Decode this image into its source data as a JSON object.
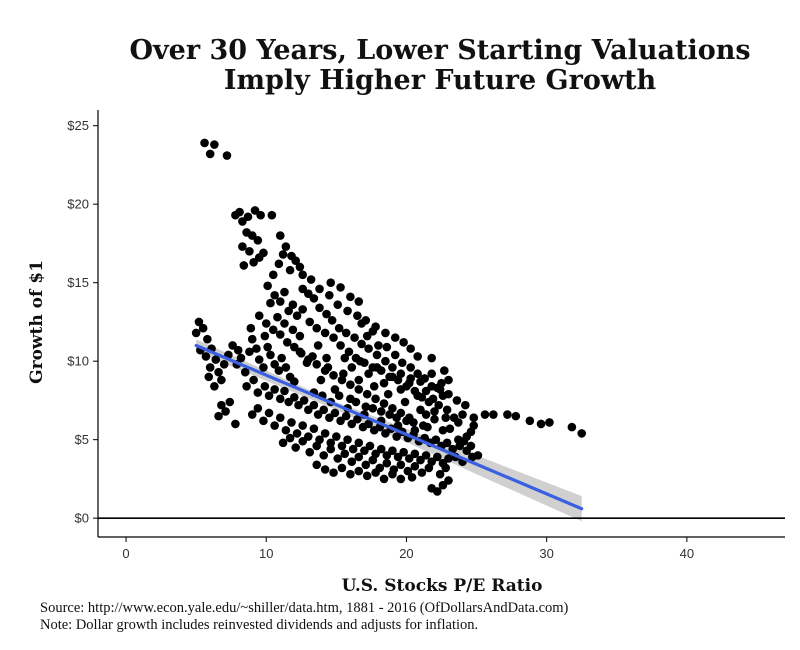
{
  "title_lines": [
    "Over 30 Years, Lower Starting Valuations",
    "Imply Higher Future Growth"
  ],
  "source_lines": [
    "Source:  http://www.econ.yale.edu/~shiller/data.htm, 1881 - 2016 (OfDollarsAndData.com)",
    "Note:  Dollar growth includes reinvested dividends and adjusts for inflation."
  ],
  "chart_data": {
    "type": "scatter",
    "title": "Over 30 Years, Lower Starting Valuations Imply Higher Future Growth",
    "xlabel": "U.S. Stocks P/E Ratio",
    "ylabel": "Growth of $1",
    "xlim": [
      -2,
      47
    ],
    "ylim": [
      -1.2,
      26
    ],
    "x_ticks": [
      0,
      10,
      20,
      30,
      40
    ],
    "x_tick_labels": [
      "0",
      "10",
      "20",
      "30",
      "40"
    ],
    "y_ticks": [
      0,
      5,
      10,
      15,
      20,
      25
    ],
    "y_tick_labels": [
      "$0",
      "$5",
      "$10",
      "$15",
      "$20",
      "$25"
    ],
    "grid": false,
    "point_color": "#000000",
    "fit_color": "#3a5fe0",
    "band_color": "#c8c8c8",
    "fit": {
      "x1": 5,
      "y1": 11.0,
      "x2": 32.5,
      "y2": 0.6
    },
    "band": [
      {
        "x": 5,
        "lo": 10.6,
        "hi": 11.4
      },
      {
        "x": 15,
        "lo": 6.9,
        "hi": 7.4
      },
      {
        "x": 25,
        "lo": 2.8,
        "hi": 4.0
      },
      {
        "x": 32.5,
        "lo": -0.2,
        "hi": 1.4
      }
    ],
    "points": [
      [
        5.6,
        23.9
      ],
      [
        6.0,
        23.2
      ],
      [
        6.3,
        23.8
      ],
      [
        7.2,
        23.1
      ],
      [
        7.8,
        19.3
      ],
      [
        8.1,
        19.5
      ],
      [
        8.3,
        18.9
      ],
      [
        8.7,
        19.2
      ],
      [
        9.2,
        19.6
      ],
      [
        9.6,
        19.3
      ],
      [
        10.4,
        19.3
      ],
      [
        8.3,
        17.3
      ],
      [
        8.6,
        18.2
      ],
      [
        9.0,
        18.0
      ],
      [
        8.8,
        17.0
      ],
      [
        9.4,
        17.7
      ],
      [
        9.8,
        16.9
      ],
      [
        8.4,
        16.1
      ],
      [
        9.1,
        16.3
      ],
      [
        9.5,
        16.6
      ],
      [
        11.0,
        18.0
      ],
      [
        11.4,
        17.3
      ],
      [
        11.8,
        16.7
      ],
      [
        12.1,
        16.4
      ],
      [
        12.4,
        16.0
      ],
      [
        12.6,
        15.5
      ],
      [
        11.2,
        16.8
      ],
      [
        11.7,
        15.8
      ],
      [
        12.6,
        14.6
      ],
      [
        13.0,
        14.3
      ],
      [
        13.4,
        14.0
      ],
      [
        13.8,
        13.4
      ],
      [
        14.3,
        13.0
      ],
      [
        14.7,
        12.6
      ],
      [
        15.2,
        12.1
      ],
      [
        15.7,
        11.8
      ],
      [
        16.3,
        11.5
      ],
      [
        16.8,
        11.1
      ],
      [
        17.3,
        10.8
      ],
      [
        17.9,
        10.4
      ],
      [
        18.5,
        10.0
      ],
      [
        19.0,
        9.6
      ],
      [
        19.6,
        9.2
      ],
      [
        20.3,
        8.9
      ],
      [
        21.0,
        8.7
      ],
      [
        21.8,
        8.4
      ],
      [
        22.4,
        8.2
      ],
      [
        23.0,
        7.9
      ],
      [
        23.6,
        7.5
      ],
      [
        24.2,
        7.2
      ],
      [
        13.2,
        15.2
      ],
      [
        13.8,
        14.6
      ],
      [
        14.5,
        14.2
      ],
      [
        15.1,
        13.6
      ],
      [
        15.8,
        13.2
      ],
      [
        16.5,
        12.9
      ],
      [
        17.1,
        12.6
      ],
      [
        17.8,
        12.2
      ],
      [
        18.5,
        11.8
      ],
      [
        19.2,
        11.5
      ],
      [
        19.8,
        11.2
      ],
      [
        20.3,
        10.8
      ],
      [
        20.8,
        10.3
      ],
      [
        10.3,
        13.7
      ],
      [
        10.6,
        14.2
      ],
      [
        11.0,
        13.8
      ],
      [
        11.3,
        14.4
      ],
      [
        11.6,
        13.2
      ],
      [
        11.9,
        13.6
      ],
      [
        12.2,
        12.9
      ],
      [
        12.6,
        13.3
      ],
      [
        13.1,
        12.5
      ],
      [
        13.6,
        12.1
      ],
      [
        14.2,
        11.8
      ],
      [
        14.8,
        11.5
      ],
      [
        15.3,
        11.0
      ],
      [
        15.9,
        10.6
      ],
      [
        16.4,
        10.2
      ],
      [
        17.0,
        9.9
      ],
      [
        17.6,
        9.6
      ],
      [
        18.2,
        9.4
      ],
      [
        18.8,
        9.0
      ],
      [
        19.4,
        8.8
      ],
      [
        20.0,
        8.4
      ],
      [
        20.6,
        8.1
      ],
      [
        21.1,
        7.7
      ],
      [
        21.6,
        7.4
      ],
      [
        10.0,
        12.4
      ],
      [
        10.5,
        12.0
      ],
      [
        11.0,
        11.7
      ],
      [
        11.5,
        11.2
      ],
      [
        12.0,
        10.9
      ],
      [
        12.5,
        10.5
      ],
      [
        13.0,
        10.1
      ],
      [
        13.6,
        9.8
      ],
      [
        14.2,
        9.4
      ],
      [
        14.8,
        9.1
      ],
      [
        15.4,
        8.8
      ],
      [
        16.0,
        8.5
      ],
      [
        16.6,
        8.2
      ],
      [
        17.2,
        7.9
      ],
      [
        17.8,
        7.6
      ],
      [
        18.4,
        7.3
      ],
      [
        19.0,
        7.0
      ],
      [
        19.6,
        6.7
      ],
      [
        20.2,
        6.4
      ],
      [
        16.8,
        12.4
      ],
      [
        17.2,
        11.6
      ],
      [
        17.6,
        11.9
      ],
      [
        18.0,
        11.0
      ],
      [
        18.6,
        10.9
      ],
      [
        19.2,
        10.4
      ],
      [
        19.7,
        9.9
      ],
      [
        20.3,
        9.6
      ],
      [
        20.8,
        9.2
      ],
      [
        21.3,
        8.9
      ],
      [
        21.8,
        9.2
      ],
      [
        22.2,
        8.3
      ],
      [
        22.6,
        7.8
      ],
      [
        22.9,
        6.9
      ],
      [
        21.4,
        6.6
      ],
      [
        22.0,
        6.3
      ],
      [
        22.8,
        6.4
      ],
      [
        23.4,
        6.4
      ],
      [
        24.0,
        6.6
      ],
      [
        24.8,
        6.4
      ],
      [
        25.6,
        6.6
      ],
      [
        26.2,
        6.6
      ],
      [
        22.5,
        8.6
      ],
      [
        22.7,
        9.4
      ],
      [
        21.8,
        10.2
      ],
      [
        22.3,
        7.2
      ],
      [
        23.0,
        8.8
      ],
      [
        27.2,
        6.6
      ],
      [
        27.8,
        6.5
      ],
      [
        28.8,
        6.2
      ],
      [
        29.6,
        6.0
      ],
      [
        30.2,
        6.1
      ],
      [
        31.8,
        5.8
      ],
      [
        32.5,
        5.4
      ],
      [
        5.0,
        11.8
      ],
      [
        5.2,
        12.5
      ],
      [
        5.5,
        12.1
      ],
      [
        5.8,
        11.4
      ],
      [
        5.3,
        10.7
      ],
      [
        5.7,
        10.3
      ],
      [
        6.1,
        10.8
      ],
      [
        6.4,
        10.1
      ],
      [
        6.0,
        9.6
      ],
      [
        6.6,
        9.3
      ],
      [
        5.9,
        9.0
      ],
      [
        6.3,
        8.4
      ],
      [
        6.8,
        8.8
      ],
      [
        7.0,
        9.8
      ],
      [
        7.3,
        10.4
      ],
      [
        6.8,
        7.2
      ],
      [
        7.1,
        6.8
      ],
      [
        7.4,
        7.4
      ],
      [
        6.6,
        6.5
      ],
      [
        7.8,
        6.0
      ],
      [
        7.6,
        11.0
      ],
      [
        8.0,
        10.7
      ],
      [
        8.2,
        10.2
      ],
      [
        7.9,
        9.8
      ],
      [
        8.5,
        9.3
      ],
      [
        8.8,
        10.6
      ],
      [
        9.0,
        11.4
      ],
      [
        9.3,
        10.8
      ],
      [
        9.5,
        10.1
      ],
      [
        9.8,
        9.6
      ],
      [
        10.1,
        10.9
      ],
      [
        10.3,
        10.4
      ],
      [
        10.6,
        9.8
      ],
      [
        10.9,
        9.4
      ],
      [
        11.1,
        10.2
      ],
      [
        11.4,
        9.6
      ],
      [
        11.7,
        9.0
      ],
      [
        12.0,
        8.7
      ],
      [
        8.6,
        8.4
      ],
      [
        9.1,
        8.8
      ],
      [
        9.4,
        8.0
      ],
      [
        9.9,
        8.4
      ],
      [
        10.2,
        7.8
      ],
      [
        10.6,
        8.2
      ],
      [
        11.0,
        7.6
      ],
      [
        11.3,
        8.1
      ],
      [
        11.6,
        7.4
      ],
      [
        12.0,
        7.7
      ],
      [
        12.3,
        7.2
      ],
      [
        12.7,
        7.5
      ],
      [
        13.0,
        6.9
      ],
      [
        13.4,
        7.2
      ],
      [
        13.7,
        6.6
      ],
      [
        14.1,
        6.9
      ],
      [
        14.5,
        6.4
      ],
      [
        14.9,
        6.7
      ],
      [
        15.3,
        6.2
      ],
      [
        15.7,
        6.5
      ],
      [
        16.1,
        6.0
      ],
      [
        16.5,
        6.3
      ],
      [
        16.9,
        5.8
      ],
      [
        17.3,
        6.0
      ],
      [
        17.7,
        5.6
      ],
      [
        18.1,
        5.8
      ],
      [
        18.5,
        5.4
      ],
      [
        18.9,
        5.7
      ],
      [
        19.3,
        5.2
      ],
      [
        19.7,
        5.5
      ],
      [
        20.1,
        5.1
      ],
      [
        20.5,
        5.3
      ],
      [
        20.9,
        4.9
      ],
      [
        21.3,
        5.1
      ],
      [
        21.7,
        4.8
      ],
      [
        22.1,
        5.0
      ],
      [
        22.5,
        4.6
      ],
      [
        22.9,
        4.8
      ],
      [
        23.3,
        4.4
      ],
      [
        23.8,
        4.6
      ],
      [
        24.3,
        4.3
      ],
      [
        25.1,
        4.0
      ],
      [
        9.0,
        6.6
      ],
      [
        9.4,
        7.0
      ],
      [
        9.8,
        6.2
      ],
      [
        10.2,
        6.7
      ],
      [
        10.6,
        5.9
      ],
      [
        11.0,
        6.4
      ],
      [
        11.4,
        5.6
      ],
      [
        11.8,
        6.1
      ],
      [
        12.2,
        5.4
      ],
      [
        12.6,
        5.9
      ],
      [
        13.0,
        5.2
      ],
      [
        13.4,
        5.7
      ],
      [
        13.8,
        5.0
      ],
      [
        14.2,
        5.4
      ],
      [
        14.6,
        4.8
      ],
      [
        15.0,
        5.2
      ],
      [
        15.4,
        4.6
      ],
      [
        15.8,
        5.0
      ],
      [
        16.2,
        4.4
      ],
      [
        16.6,
        4.8
      ],
      [
        17.0,
        4.3
      ],
      [
        17.4,
        4.6
      ],
      [
        17.8,
        4.1
      ],
      [
        18.2,
        4.4
      ],
      [
        18.6,
        4.0
      ],
      [
        19.0,
        4.3
      ],
      [
        19.4,
        3.9
      ],
      [
        19.8,
        4.2
      ],
      [
        20.2,
        3.8
      ],
      [
        20.6,
        4.1
      ],
      [
        21.0,
        3.7
      ],
      [
        21.4,
        4.0
      ],
      [
        21.8,
        3.6
      ],
      [
        22.2,
        3.9
      ],
      [
        22.6,
        3.5
      ],
      [
        23.0,
        3.8
      ],
      [
        11.2,
        4.8
      ],
      [
        11.7,
        5.1
      ],
      [
        12.1,
        4.5
      ],
      [
        12.6,
        4.9
      ],
      [
        13.1,
        4.2
      ],
      [
        13.6,
        4.6
      ],
      [
        14.1,
        4.0
      ],
      [
        14.6,
        4.4
      ],
      [
        15.1,
        3.8
      ],
      [
        15.6,
        4.1
      ],
      [
        16.1,
        3.6
      ],
      [
        16.6,
        3.9
      ],
      [
        17.1,
        3.4
      ],
      [
        17.6,
        3.7
      ],
      [
        18.1,
        3.2
      ],
      [
        18.6,
        3.5
      ],
      [
        19.1,
        3.1
      ],
      [
        19.6,
        3.4
      ],
      [
        20.1,
        3.0
      ],
      [
        20.6,
        3.3
      ],
      [
        21.1,
        2.9
      ],
      [
        21.6,
        3.2
      ],
      [
        13.6,
        3.4
      ],
      [
        14.2,
        3.1
      ],
      [
        14.8,
        2.9
      ],
      [
        15.4,
        3.2
      ],
      [
        16.0,
        2.8
      ],
      [
        16.6,
        3.0
      ],
      [
        17.2,
        2.7
      ],
      [
        17.8,
        2.9
      ],
      [
        18.4,
        2.5
      ],
      [
        19.0,
        2.8
      ],
      [
        19.6,
        2.5
      ],
      [
        20.4,
        2.6
      ],
      [
        21.8,
        1.9
      ],
      [
        22.2,
        1.7
      ],
      [
        22.6,
        2.1
      ],
      [
        23.0,
        2.4
      ],
      [
        22.4,
        2.8
      ],
      [
        12.4,
        10.6
      ],
      [
        12.9,
        9.9
      ],
      [
        13.3,
        10.3
      ],
      [
        13.9,
        8.8
      ],
      [
        14.4,
        9.6
      ],
      [
        14.9,
        8.2
      ],
      [
        15.5,
        9.2
      ],
      [
        16.0,
        7.6
      ],
      [
        16.6,
        8.8
      ],
      [
        17.1,
        7.1
      ],
      [
        17.7,
        8.4
      ],
      [
        18.2,
        6.8
      ],
      [
        18.7,
        7.9
      ],
      [
        19.3,
        6.4
      ],
      [
        19.9,
        7.4
      ],
      [
        20.5,
        6.1
      ],
      [
        21.0,
        6.9
      ],
      [
        21.5,
        5.8
      ],
      [
        22.0,
        6.8
      ],
      [
        22.6,
        5.6
      ],
      [
        23.1,
        5.7
      ],
      [
        23.7,
        5.0
      ],
      [
        24.3,
        5.2
      ],
      [
        24.6,
        4.6
      ],
      [
        13.4,
        8.0
      ],
      [
        14.0,
        7.8
      ],
      [
        14.6,
        7.4
      ],
      [
        15.2,
        7.8
      ],
      [
        15.8,
        7.0
      ],
      [
        16.4,
        7.4
      ],
      [
        17.0,
        6.6
      ],
      [
        17.6,
        7.0
      ],
      [
        18.2,
        6.2
      ],
      [
        18.8,
        6.6
      ],
      [
        19.4,
        5.9
      ],
      [
        20.0,
        6.2
      ],
      [
        20.6,
        5.6
      ],
      [
        21.2,
        5.9
      ],
      [
        15.6,
        10.2
      ],
      [
        16.1,
        9.6
      ],
      [
        16.7,
        10.0
      ],
      [
        17.3,
        9.2
      ],
      [
        17.9,
        9.6
      ],
      [
        18.4,
        8.6
      ],
      [
        19.0,
        9.0
      ],
      [
        19.6,
        8.2
      ],
      [
        20.2,
        8.6
      ],
      [
        20.8,
        7.8
      ],
      [
        21.4,
        8.1
      ],
      [
        21.9,
        7.6
      ],
      [
        10.8,
        12.8
      ],
      [
        11.3,
        12.4
      ],
      [
        11.9,
        12.0
      ],
      [
        12.4,
        11.6
      ],
      [
        9.5,
        12.9
      ],
      [
        9.9,
        11.6
      ],
      [
        8.9,
        12.1
      ],
      [
        10.1,
        14.8
      ],
      [
        10.5,
        15.5
      ],
      [
        10.9,
        16.2
      ],
      [
        14.6,
        15.0
      ],
      [
        15.3,
        14.7
      ],
      [
        16.0,
        14.1
      ],
      [
        16.6,
        13.8
      ],
      [
        14.3,
        10.2
      ],
      [
        13.7,
        11.0
      ],
      [
        24.8,
        5.9
      ],
      [
        24.6,
        5.5
      ],
      [
        23.7,
        6.1
      ],
      [
        24.1,
        4.9
      ],
      [
        23.5,
        3.9
      ],
      [
        24.0,
        3.6
      ],
      [
        24.7,
        3.9
      ],
      [
        22.8,
        3.2
      ]
    ]
  }
}
